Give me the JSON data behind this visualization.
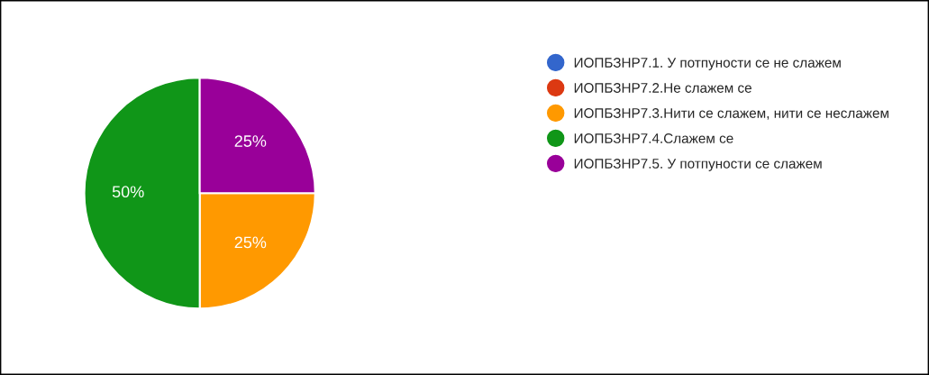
{
  "chart_data": {
    "type": "pie",
    "categories": [
      "ИОПБЗНР7.1. У потпуности се не слажем",
      "ИОПБЗНР7.2.Не слажем се",
      "ИОПБЗНР7.3.Нити се слажем, нити се неслажем",
      "ИОПБЗНР7.4.Слажем се",
      "ИОПБЗНР7.5. У потпуности се слажем"
    ],
    "values": [
      0,
      0,
      25,
      50,
      25
    ],
    "colors": [
      "#3366cc",
      "#dc3912",
      "#ff9900",
      "#109618",
      "#990099"
    ],
    "value_labels": [
      null,
      null,
      "25%",
      "50%",
      "25%"
    ],
    "legend": "right"
  }
}
